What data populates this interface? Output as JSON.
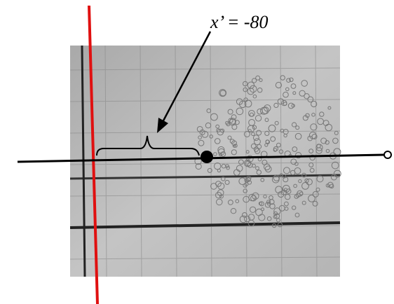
{
  "annotation": {
    "label": "x’ = -80"
  }
}
